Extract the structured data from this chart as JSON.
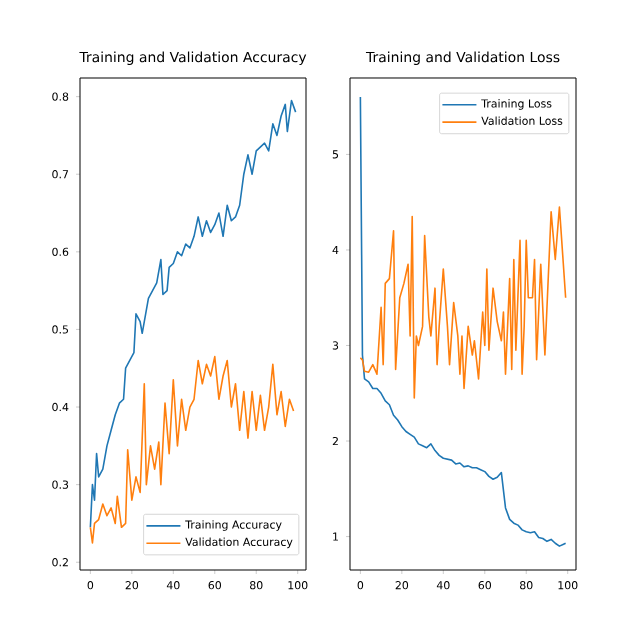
{
  "chart_data": [
    {
      "type": "line",
      "title": "Training and Validation Accuracy",
      "xlim": [
        -5,
        104
      ],
      "ylim": [
        0.19,
        0.824
      ],
      "xticks": [
        0,
        20,
        40,
        60,
        80,
        100
      ],
      "yticks": [
        0.2,
        0.3,
        0.4,
        0.5,
        0.6,
        0.7,
        0.8
      ],
      "legend": "bottom right",
      "series": [
        {
          "name": "Training Accuracy",
          "color": "#1f77b4",
          "x": [
            0,
            1,
            2,
            3,
            4,
            6,
            8,
            10,
            12,
            14,
            16,
            17,
            19,
            21,
            22,
            24,
            25,
            28,
            30,
            32,
            34,
            35,
            37,
            38,
            40,
            42,
            44,
            46,
            48,
            50,
            52,
            54,
            56,
            58,
            60,
            62,
            64,
            66,
            68,
            70,
            72,
            74,
            76,
            78,
            80,
            82,
            84,
            86,
            88,
            90,
            92,
            94,
            95,
            97,
            99
          ],
          "values": [
            0.245,
            0.3,
            0.28,
            0.34,
            0.31,
            0.32,
            0.35,
            0.37,
            0.39,
            0.405,
            0.41,
            0.45,
            0.46,
            0.47,
            0.52,
            0.51,
            0.495,
            0.54,
            0.55,
            0.56,
            0.59,
            0.545,
            0.55,
            0.58,
            0.585,
            0.6,
            0.595,
            0.61,
            0.605,
            0.62,
            0.645,
            0.62,
            0.64,
            0.625,
            0.635,
            0.65,
            0.62,
            0.66,
            0.64,
            0.645,
            0.66,
            0.7,
            0.725,
            0.7,
            0.73,
            0.735,
            0.74,
            0.73,
            0.765,
            0.75,
            0.775,
            0.79,
            0.755,
            0.795,
            0.78
          ]
        },
        {
          "name": "Validation Accuracy",
          "color": "#ff7f0e",
          "x": [
            0,
            1,
            2,
            4,
            6,
            8,
            10,
            12,
            13,
            15,
            17,
            18,
            20,
            22,
            24,
            26,
            27,
            29,
            31,
            33,
            34,
            36,
            38,
            40,
            42,
            44,
            46,
            48,
            50,
            52,
            54,
            56,
            58,
            60,
            62,
            64,
            66,
            68,
            70,
            72,
            74,
            76,
            78,
            80,
            82,
            84,
            86,
            88,
            90,
            92,
            94,
            96,
            98
          ],
          "values": [
            0.245,
            0.225,
            0.25,
            0.255,
            0.275,
            0.26,
            0.27,
            0.25,
            0.285,
            0.245,
            0.25,
            0.345,
            0.28,
            0.31,
            0.29,
            0.43,
            0.3,
            0.35,
            0.32,
            0.355,
            0.3,
            0.405,
            0.34,
            0.435,
            0.35,
            0.41,
            0.37,
            0.4,
            0.41,
            0.46,
            0.43,
            0.455,
            0.44,
            0.465,
            0.41,
            0.44,
            0.46,
            0.4,
            0.43,
            0.37,
            0.42,
            0.36,
            0.42,
            0.37,
            0.415,
            0.37,
            0.4,
            0.455,
            0.39,
            0.42,
            0.375,
            0.41,
            0.395
          ]
        }
      ]
    },
    {
      "type": "line",
      "title": "Training and Validation Loss",
      "xlim": [
        -5,
        104
      ],
      "ylim": [
        0.65,
        5.8
      ],
      "xticks": [
        0,
        20,
        40,
        60,
        80,
        100
      ],
      "yticks": [
        1,
        2,
        3,
        4,
        5
      ],
      "legend": "top right",
      "series": [
        {
          "name": "Training Loss",
          "color": "#1f77b4",
          "x": [
            0,
            1,
            2,
            4,
            6,
            8,
            10,
            12,
            14,
            16,
            18,
            20,
            22,
            24,
            26,
            28,
            30,
            32,
            34,
            36,
            38,
            40,
            42,
            44,
            46,
            48,
            50,
            52,
            54,
            56,
            58,
            60,
            62,
            64,
            66,
            68,
            70,
            72,
            74,
            76,
            78,
            80,
            82,
            84,
            86,
            88,
            90,
            92,
            94,
            96,
            98,
            99
          ],
          "values": [
            5.6,
            2.9,
            2.65,
            2.62,
            2.55,
            2.55,
            2.5,
            2.42,
            2.38,
            2.27,
            2.22,
            2.15,
            2.1,
            2.07,
            2.04,
            1.97,
            1.95,
            1.93,
            1.97,
            1.9,
            1.85,
            1.82,
            1.81,
            1.8,
            1.76,
            1.77,
            1.73,
            1.74,
            1.72,
            1.72,
            1.7,
            1.68,
            1.63,
            1.6,
            1.62,
            1.67,
            1.3,
            1.18,
            1.14,
            1.12,
            1.07,
            1.05,
            1.04,
            1.05,
            0.99,
            0.98,
            0.95,
            0.97,
            0.93,
            0.9,
            0.92,
            0.93
          ]
        },
        {
          "name": "Validation Loss",
          "color": "#ff7f0e",
          "x": [
            0,
            1,
            2,
            4,
            6,
            8,
            10,
            11,
            12,
            14,
            16,
            17,
            19,
            21,
            23,
            24,
            25,
            26,
            27,
            28,
            30,
            31,
            33,
            34,
            36,
            37,
            38,
            40,
            42,
            43,
            45,
            47,
            48,
            49,
            50,
            52,
            54,
            55,
            57,
            59,
            60,
            61,
            62,
            64,
            66,
            68,
            69,
            70,
            72,
            73,
            74,
            75,
            77,
            78,
            79,
            80,
            81,
            83,
            84,
            85,
            87,
            89,
            92,
            94,
            96,
            99
          ],
          "values": [
            2.87,
            2.85,
            2.73,
            2.72,
            2.8,
            2.7,
            3.4,
            2.8,
            3.65,
            3.7,
            4.2,
            2.75,
            3.5,
            3.65,
            3.85,
            3.1,
            4.35,
            2.45,
            3.1,
            3.0,
            3.2,
            4.15,
            3.3,
            3.1,
            3.6,
            2.8,
            3.2,
            3.8,
            3.2,
            2.8,
            3.45,
            3.1,
            2.7,
            3.1,
            2.55,
            3.2,
            2.9,
            3.05,
            2.65,
            3.35,
            3.0,
            3.8,
            2.95,
            3.6,
            3.25,
            3.05,
            3.35,
            2.7,
            3.7,
            2.75,
            3.9,
            2.95,
            4.1,
            2.7,
            3.2,
            4.1,
            3.5,
            3.5,
            3.9,
            2.85,
            3.85,
            2.9,
            4.4,
            3.9,
            4.45,
            3.5
          ]
        }
      ]
    }
  ]
}
